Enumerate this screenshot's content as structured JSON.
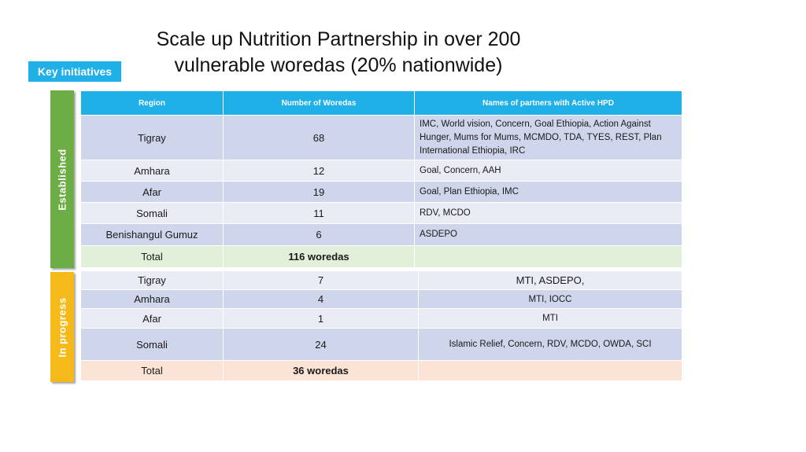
{
  "title_line1": "Scale up Nutrition Partnership in over 200",
  "title_line2": "vulnerable woredas (20% nationwide)",
  "key_tag": "Key initiatives",
  "sections": {
    "established": "Established",
    "in_progress": "In progress"
  },
  "headers": {
    "region": "Region",
    "woredas": "Number of Woredas",
    "partners": "Names of partners with Active HPD"
  },
  "established_rows": [
    {
      "region": "Tigray",
      "woredas": "68",
      "partners": "IMC, World vision, Concern, Goal Ethiopia, Action Against Hunger, Mums for Mums, MCMDO, TDA, TYES, REST, Plan International Ethiopia, IRC"
    },
    {
      "region": "Amhara",
      "woredas": "12",
      "partners": "Goal, Concern, AAH"
    },
    {
      "region": "Afar",
      "woredas": "19",
      "partners": "Goal, Plan Ethiopia, IMC"
    },
    {
      "region": "Somali",
      "woredas": "11",
      "partners": "RDV, MCDO"
    },
    {
      "region": "Benishangul Gumuz",
      "woredas": "6",
      "partners": "ASDEPO"
    }
  ],
  "established_total": {
    "label": "Total",
    "woredas": "116 woredas"
  },
  "progress_rows": [
    {
      "region": "Tigray",
      "woredas": "7",
      "partners": "MTI, ASDEPO,"
    },
    {
      "region": "Amhara",
      "woredas": "4",
      "partners": "MTI, IOCC"
    },
    {
      "region": "Afar",
      "woredas": "1",
      "partners": "MTI"
    },
    {
      "region": "Somali",
      "woredas": "24",
      "partners": "Islamic Relief, Concern, RDV, MCDO, OWDA, SCI"
    }
  ],
  "progress_total": {
    "label": "Total",
    "woredas": "36 woredas"
  }
}
